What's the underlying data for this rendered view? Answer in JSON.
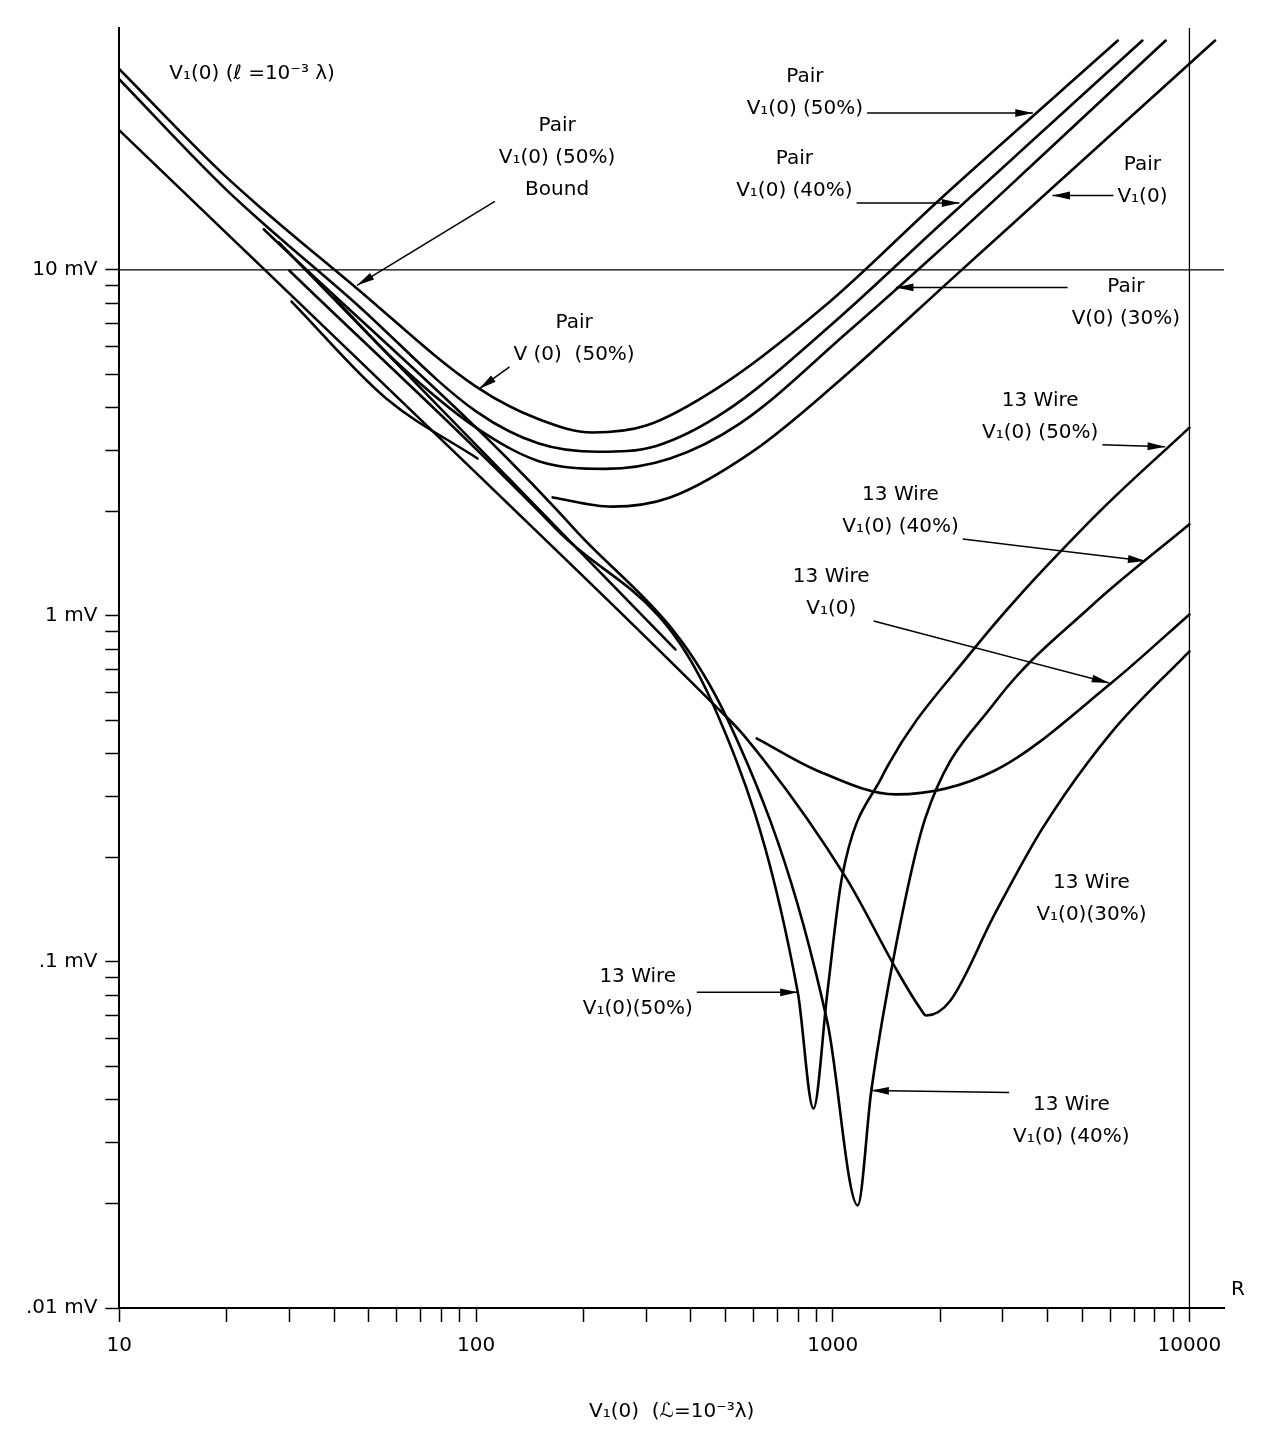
{
  "chart_data": {
    "type": "line",
    "xlabel": "V₁(0)  (ℒ=10⁻³λ)",
    "ylabel": "V₁(0) (ℓ =10⁻³ λ)",
    "log": "xy",
    "grid": false,
    "legend": false,
    "marker": "none",
    "line_style": "solid",
    "xlim": [
      10,
      12500
    ],
    "ylim": [
      0.01,
      50
    ],
    "xticks": [
      10,
      {
        "value": 20,
        "label": null
      },
      {
        "value": 30,
        "label": null
      },
      {
        "value": 40,
        "label": null
      },
      {
        "value": 50,
        "label": null
      },
      {
        "value": 60,
        "label": null
      },
      {
        "value": 70,
        "label": null
      },
      {
        "value": 80,
        "label": null
      },
      {
        "value": 90,
        "label": null
      },
      100,
      {
        "value": 200,
        "label": null
      },
      {
        "value": 300,
        "label": null
      },
      {
        "value": 400,
        "label": null
      },
      {
        "value": 500,
        "label": null
      },
      {
        "value": 600,
        "label": null
      },
      {
        "value": 700,
        "label": null
      },
      {
        "value": 800,
        "label": null
      },
      {
        "value": 900,
        "label": null
      },
      1000,
      {
        "value": 2000,
        "label": null
      },
      {
        "value": 3000,
        "label": null
      },
      {
        "value": 4000,
        "label": null
      },
      {
        "value": 5000,
        "label": null
      },
      {
        "value": 6000,
        "label": null
      },
      {
        "value": 7000,
        "label": null
      },
      {
        "value": 8000,
        "label": null
      },
      {
        "value": 9000,
        "label": null
      },
      10000
    ],
    "yticks": [
      {
        "value": 0.01,
        "label": ".01 mV"
      },
      {
        "value": 0.02,
        "label": null
      },
      {
        "value": 0.03,
        "label": null
      },
      {
        "value": 0.04,
        "label": null
      },
      {
        "value": 0.05,
        "label": null
      },
      {
        "value": 0.06,
        "label": null
      },
      {
        "value": 0.07,
        "label": null
      },
      {
        "value": 0.08,
        "label": null
      },
      {
        "value": 0.09,
        "label": null
      },
      {
        "value": 0.1,
        "label": ".1 mV"
      },
      {
        "value": 0.2,
        "label": null
      },
      {
        "value": 0.3,
        "label": null
      },
      {
        "value": 0.4,
        "label": null
      },
      {
        "value": 0.5,
        "label": null
      },
      {
        "value": 0.6,
        "label": null
      },
      {
        "value": 0.7,
        "label": null
      },
      {
        "value": 0.8,
        "label": null
      },
      {
        "value": 0.9,
        "label": null
      },
      {
        "value": 1,
        "label": "1 mV"
      },
      {
        "value": 2,
        "label": null
      },
      {
        "value": 3,
        "label": null
      },
      {
        "value": 4,
        "label": null
      },
      {
        "value": 5,
        "label": null
      },
      {
        "value": 6,
        "label": null
      },
      {
        "value": 7,
        "label": null
      },
      {
        "value": 8,
        "label": null
      },
      {
        "value": 9,
        "label": null
      },
      {
        "value": 10,
        "label": "10 mV"
      }
    ],
    "series": [
      {
        "color": "#000000",
        "x": [
          10,
          20,
          46,
          100,
          150,
          212,
          300,
          482,
          955,
          2000,
          6300
        ],
        "values": [
          38,
          18.5,
          8.9,
          4.6,
          3.7,
          3.39,
          3.55,
          4.6,
          7.9,
          16,
          46
        ]
      },
      {
        "color": "#000000",
        "x": [
          10,
          20,
          46,
          100,
          150,
          220,
          320,
          500,
          1000,
          2000,
          7380
        ],
        "values": [
          35.5,
          17,
          8.0,
          3.9,
          3.15,
          2.98,
          3.1,
          3.9,
          7.0,
          13.5,
          46
        ]
      },
      {
        "color": "#000000",
        "x": [
          40,
          60,
          100,
          150,
          230,
          350,
          550,
          1100,
          2200,
          8580
        ],
        "values": [
          8.3,
          5.4,
          3.5,
          2.8,
          2.66,
          2.85,
          3.6,
          6.6,
          12.5,
          46
        ]
      },
      {
        "color": "#000000",
        "x": [
          164,
          240,
          350,
          600,
          1000,
          2300,
          11800
        ],
        "values": [
          2.2,
          2.07,
          2.2,
          3.0,
          4.6,
          10,
          46
        ]
      },
      {
        "color": "#000000",
        "x": [
          10,
          100,
          460,
          565,
          1090,
          1505,
          1750,
          1830,
          2130,
          2840,
          3880,
          6040,
          10000
        ],
        "values": [
          25.3,
          2.59,
          0.56,
          0.45,
          0.175,
          0.0955,
          0.074,
          0.07,
          0.077,
          0.137,
          0.244,
          0.46,
          0.79
        ]
      },
      {
        "color": "#000000",
        "x": [
          30,
          167,
          460,
          798,
          883,
          966,
          1062,
          1368,
          2417,
          5320,
          10000
        ],
        "values": [
          9.94,
          1.79,
          0.56,
          0.0817,
          0.0377,
          0.0817,
          0.176,
          0.34,
          0.774,
          1.9,
          3.5
        ]
      },
      {
        "color": "#000000",
        "x": [
          25.4,
          188,
          513,
          966,
          1175,
          1283,
          1505,
          1817,
          2840,
          5320,
          10000
        ],
        "values": [
          13.1,
          1.79,
          0.49,
          0.067,
          0.0198,
          0.0425,
          0.112,
          0.26,
          0.56,
          1.07,
          1.84
        ]
      },
      {
        "color": "#000000",
        "x": [
          30.4,
          56,
          101
        ],
        "values": [
          8.1,
          4.25,
          2.85
        ]
      },
      {
        "color": "#000000",
        "x": [
          28,
          362
        ],
        "values": [
          12,
          0.8
        ]
      },
      {
        "color": "#000000",
        "x": [
          612,
          906,
          1505,
          2840,
          6040,
          10000
        ],
        "values": [
          0.443,
          0.357,
          0.305,
          0.357,
          0.64,
          1.01
        ]
      }
    ],
    "ref_lines": [
      {
        "axis": "y",
        "value": 10
      },
      {
        "axis": "x",
        "value": 10000
      }
    ],
    "annotations": [
      {
        "text": "Pair\nV₁(0) (50%)",
        "x": 3640,
        "y": 28.4
      },
      {
        "text": "Pair\nV₁(0) (40%)",
        "x": 2265,
        "y": 15.6
      },
      {
        "text": "Pair\nV₁(0)",
        "x": 4130,
        "y": 16.4
      },
      {
        "text": "Pair\nV(0) (30%)",
        "x": 1503,
        "y": 8.9
      },
      {
        "text": "Pair\nV₁(0) (50%)\nBound",
        "x": 46.4,
        "y": 9.02
      },
      {
        "text": "Pair\nV (0)  (50%)",
        "x": 102,
        "y": 4.53
      },
      {
        "text": "13 Wire\nV₁(0) (50%)",
        "x": 8550,
        "y": 3.08
      },
      {
        "text": "13 Wire\nV₁(0) (40%)",
        "x": 7530,
        "y": 1.44
      },
      {
        "text": "13 Wire\nV₁(0)",
        "x": 5960,
        "y": 0.64
      },
      "13 Wire\nV₁(0)(30%)",
      {
        "text": "13 Wire\nV₁(0)(50%)",
        "x": 798,
        "y": 0.0817
      },
      {
        "text": "13 Wire\nV₁(0) (40%)",
        "x": 1283,
        "y": 0.0425
      },
      "R"
    ]
  }
}
